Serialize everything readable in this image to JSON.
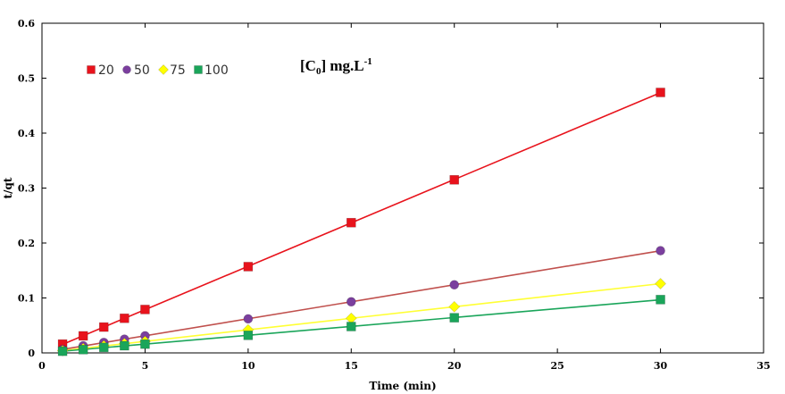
{
  "chart_data": {
    "type": "scatter",
    "xlabel": "Time (min)",
    "ylabel": "t/qt",
    "xlim": [
      0,
      35
    ],
    "ylim": [
      0,
      0.6
    ],
    "xticks": [
      0,
      5,
      10,
      15,
      20,
      25,
      30,
      35
    ],
    "yticks": [
      0,
      0.1,
      0.2,
      0.3,
      0.4,
      0.5,
      0.6
    ],
    "xtick_labels": [
      "0",
      "5",
      "10",
      "15",
      "20",
      "25",
      "30",
      "35"
    ],
    "ytick_labels": [
      "0",
      "0.1",
      "0.2",
      "0.3",
      "0.4",
      "0.5",
      "0.6"
    ],
    "grid": false,
    "legend_position": "top-left",
    "annotation": {
      "base": "[C",
      "sub": "0",
      "mid": "] mg.L",
      "sup": "-1"
    },
    "x": [
      1,
      2,
      3,
      4,
      5,
      10,
      15,
      20,
      30
    ],
    "series": [
      {
        "name": "20",
        "marker": "square",
        "marker_color": "#e8131c",
        "line_color": "#e8131c",
        "values": [
          0.016,
          0.031,
          0.047,
          0.063,
          0.079,
          0.157,
          0.237,
          0.315,
          0.474
        ]
      },
      {
        "name": "50",
        "marker": "circle",
        "marker_color": "#7b3f9e",
        "line_color": "#c0504d",
        "values": [
          0.006,
          0.013,
          0.019,
          0.025,
          0.031,
          0.062,
          0.093,
          0.124,
          0.186
        ]
      },
      {
        "name": "75",
        "marker": "diamond",
        "marker_color": "#ffff00",
        "line_color": "#ffff33",
        "values": [
          0.004,
          0.008,
          0.013,
          0.017,
          0.021,
          0.042,
          0.063,
          0.084,
          0.126
        ]
      },
      {
        "name": "100",
        "marker": "square",
        "marker_color": "#1aa55a",
        "line_color": "#1aa55a",
        "values": [
          0.003,
          0.006,
          0.01,
          0.013,
          0.016,
          0.032,
          0.048,
          0.064,
          0.097
        ]
      }
    ]
  }
}
